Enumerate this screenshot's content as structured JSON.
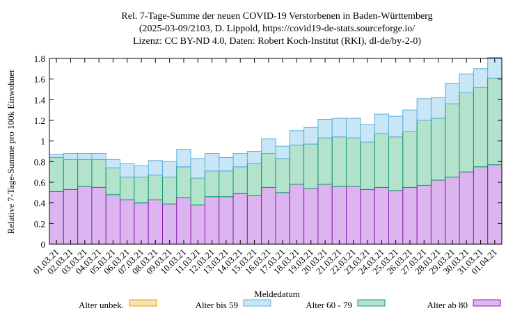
{
  "chart_data": {
    "type": "bar",
    "stacked": true,
    "title_lines": [
      "Rel. 7-Tage-Summe der neuen COVID-19 Verstorbenen in Baden-Württemberg",
      "(2025-03-09/2103, D. Lippold, https://covid19-de-stats.sourceforge.io/",
      "Lizenz: CC BY-ND 4.0, Daten: Robert Koch-Institut (RKI), dl-de/by-2-0)"
    ],
    "xlabel": "Meldedatum",
    "ylabel": "Relative 7-Tage-Summe pro 100k Einwohner",
    "ylim": [
      0,
      1.8
    ],
    "yticks": [
      0,
      0.2,
      0.4,
      0.6,
      0.8,
      1,
      1.2,
      1.4,
      1.6,
      1.8
    ],
    "ytick_labels": [
      "0",
      "0.2",
      "0.4",
      "0.6",
      "0.8",
      "1",
      "1.2",
      "1.4",
      "1.6",
      "1.8"
    ],
    "grid": false,
    "legend_position": "bottom",
    "categories": [
      "01.03.21",
      "02.03.21",
      "03.03.21",
      "04.03.21",
      "05.03.21",
      "06.03.21",
      "07.03.21",
      "08.03.21",
      "09.03.21",
      "10.03.21",
      "11.03.21",
      "12.03.21",
      "13.03.21",
      "14.03.21",
      "15.03.21",
      "16.03.21",
      "17.03.21",
      "18.03.21",
      "19.03.21",
      "20.03.21",
      "21.03.21",
      "22.03.21",
      "23.03.21",
      "24.03.21",
      "25.03.21",
      "26.03.21",
      "27.03.21",
      "28.03.21",
      "29.03.21",
      "30.03.21",
      "31.03.21",
      "01.04.21"
    ],
    "series": [
      {
        "name": "Alter ab 80",
        "fill": "#dcb4f0",
        "stroke": "#8b1fb0",
        "values": [
          0.51,
          0.53,
          0.56,
          0.55,
          0.48,
          0.43,
          0.4,
          0.43,
          0.39,
          0.45,
          0.38,
          0.46,
          0.46,
          0.49,
          0.47,
          0.55,
          0.5,
          0.58,
          0.54,
          0.58,
          0.56,
          0.56,
          0.53,
          0.55,
          0.52,
          0.55,
          0.57,
          0.62,
          0.65,
          0.7,
          0.75,
          0.77
        ]
      },
      {
        "name": "Alter 60 - 79",
        "fill": "#b3e3cd",
        "stroke": "#139a6a",
        "values": [
          0.33,
          0.29,
          0.26,
          0.27,
          0.26,
          0.22,
          0.25,
          0.24,
          0.26,
          0.3,
          0.26,
          0.25,
          0.25,
          0.26,
          0.31,
          0.33,
          0.33,
          0.38,
          0.43,
          0.45,
          0.48,
          0.47,
          0.46,
          0.52,
          0.52,
          0.54,
          0.63,
          0.6,
          0.71,
          0.77,
          0.77,
          0.84
        ]
      },
      {
        "name": "Alter bis 59",
        "fill": "#c9e6f6",
        "stroke": "#5aaedc",
        "values": [
          0.03,
          0.06,
          0.06,
          0.06,
          0.08,
          0.13,
          0.11,
          0.14,
          0.15,
          0.17,
          0.19,
          0.17,
          0.13,
          0.13,
          0.12,
          0.14,
          0.12,
          0.14,
          0.16,
          0.18,
          0.18,
          0.19,
          0.17,
          0.19,
          0.2,
          0.21,
          0.21,
          0.2,
          0.2,
          0.18,
          0.18,
          0.2
        ]
      },
      {
        "name": "Alter unbek.",
        "fill": "#fce0a8",
        "stroke": "#e79a1a",
        "values": [
          0,
          0,
          0,
          0,
          0,
          0,
          0,
          0,
          0,
          0,
          0,
          0,
          0,
          0,
          0,
          0,
          0,
          0,
          0,
          0,
          0,
          0,
          0,
          0,
          0,
          0,
          0,
          0,
          0,
          0,
          0,
          0
        ]
      }
    ],
    "legend_order": [
      "Alter unbek.",
      "Alter bis 59",
      "Alter 60 - 79",
      "Alter ab 80"
    ]
  }
}
